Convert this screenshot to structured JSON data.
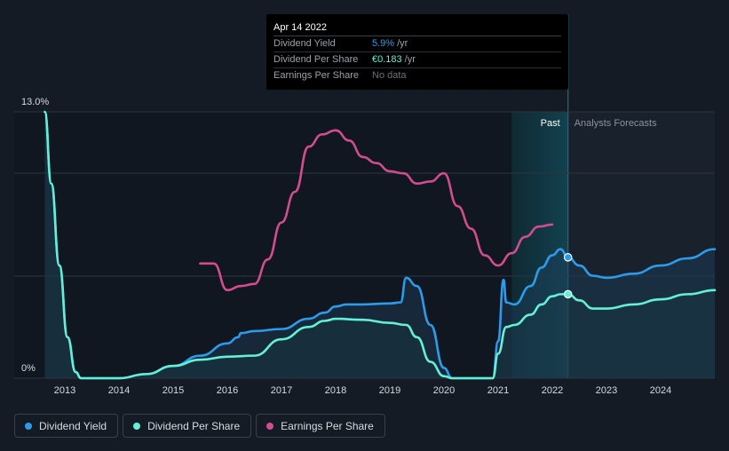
{
  "chart_data": {
    "type": "line",
    "y_axis_labels": {
      "top": "13.0%",
      "bottom": "0%"
    },
    "ylim": [
      0,
      13.0
    ],
    "xlim": [
      2012.5,
      2025.0
    ],
    "x_tick_labels": [
      "2013",
      "2014",
      "2015",
      "2016",
      "2017",
      "2018",
      "2019",
      "2020",
      "2021",
      "2022",
      "2023",
      "2024"
    ],
    "region_labels": {
      "past": "Past",
      "forecast": "Analysts Forecasts"
    },
    "past_region_start": 2021.25,
    "forecast_start": 2022.29,
    "series": [
      {
        "name": "Dividend Yield",
        "color": "#2e9bea",
        "points": [
          [
            2012.63,
            13.0
          ],
          [
            2012.75,
            9.5
          ],
          [
            2012.9,
            5.5
          ],
          [
            2013.05,
            2.0
          ],
          [
            2013.2,
            0.3
          ],
          [
            2013.3,
            0.0
          ],
          [
            2014.0,
            0.0
          ],
          [
            2014.5,
            0.2
          ],
          [
            2015.0,
            0.6
          ],
          [
            2015.5,
            1.1
          ],
          [
            2016.0,
            1.7
          ],
          [
            2016.2,
            2.0
          ],
          [
            2016.25,
            2.2
          ],
          [
            2016.5,
            2.3
          ],
          [
            2017.0,
            2.4
          ],
          [
            2017.5,
            2.9
          ],
          [
            2017.8,
            3.2
          ],
          [
            2018.0,
            3.5
          ],
          [
            2018.2,
            3.6
          ],
          [
            2018.5,
            3.6
          ],
          [
            2019.0,
            3.65
          ],
          [
            2019.2,
            3.7
          ],
          [
            2019.3,
            4.9
          ],
          [
            2019.5,
            4.5
          ],
          [
            2019.75,
            2.6
          ],
          [
            2020.0,
            0.5
          ],
          [
            2020.15,
            0.0
          ],
          [
            2020.9,
            0.0
          ],
          [
            2021.0,
            1.8
          ],
          [
            2021.1,
            4.8
          ],
          [
            2021.15,
            3.7
          ],
          [
            2021.3,
            3.6
          ],
          [
            2021.6,
            4.5
          ],
          [
            2021.8,
            5.4
          ],
          [
            2022.0,
            6.0
          ],
          [
            2022.15,
            6.3
          ],
          [
            2022.29,
            5.9
          ],
          [
            2022.5,
            5.5
          ],
          [
            2022.75,
            5.0
          ],
          [
            2023.0,
            4.9
          ],
          [
            2023.5,
            5.1
          ],
          [
            2024.0,
            5.5
          ],
          [
            2024.5,
            5.85
          ],
          [
            2025.0,
            6.3
          ]
        ]
      },
      {
        "name": "Dividend Per Share",
        "color": "#63f0d6",
        "points": [
          [
            2012.63,
            13.0
          ],
          [
            2012.75,
            9.5
          ],
          [
            2012.9,
            5.5
          ],
          [
            2013.05,
            2.0
          ],
          [
            2013.2,
            0.3
          ],
          [
            2013.3,
            0.0
          ],
          [
            2014.0,
            0.0
          ],
          [
            2014.5,
            0.2
          ],
          [
            2015.0,
            0.6
          ],
          [
            2015.5,
            0.9
          ],
          [
            2016.0,
            1.05
          ],
          [
            2016.5,
            1.1
          ],
          [
            2017.0,
            1.9
          ],
          [
            2017.5,
            2.5
          ],
          [
            2017.8,
            2.8
          ],
          [
            2018.0,
            2.9
          ],
          [
            2018.5,
            2.85
          ],
          [
            2019.0,
            2.7
          ],
          [
            2019.3,
            2.6
          ],
          [
            2019.5,
            2.0
          ],
          [
            2019.75,
            0.8
          ],
          [
            2020.0,
            0.1
          ],
          [
            2020.15,
            0.0
          ],
          [
            2020.9,
            0.0
          ],
          [
            2021.0,
            1.2
          ],
          [
            2021.15,
            2.5
          ],
          [
            2021.3,
            2.6
          ],
          [
            2021.6,
            3.1
          ],
          [
            2021.8,
            3.6
          ],
          [
            2022.0,
            4.0
          ],
          [
            2022.15,
            4.1
          ],
          [
            2022.29,
            4.1
          ],
          [
            2022.5,
            3.8
          ],
          [
            2022.75,
            3.4
          ],
          [
            2023.0,
            3.4
          ],
          [
            2023.5,
            3.6
          ],
          [
            2024.0,
            3.85
          ],
          [
            2024.5,
            4.1
          ],
          [
            2025.0,
            4.3
          ]
        ]
      },
      {
        "name": "Earnings Per Share",
        "color": "#d14d8f",
        "points": [
          [
            2015.5,
            5.6
          ],
          [
            2015.75,
            5.6
          ],
          [
            2016.0,
            4.3
          ],
          [
            2016.25,
            4.5
          ],
          [
            2016.5,
            4.6
          ],
          [
            2016.75,
            5.8
          ],
          [
            2017.0,
            7.6
          ],
          [
            2017.25,
            9.1
          ],
          [
            2017.5,
            11.3
          ],
          [
            2017.75,
            11.9
          ],
          [
            2018.0,
            12.1
          ],
          [
            2018.25,
            11.6
          ],
          [
            2018.5,
            10.8
          ],
          [
            2018.75,
            10.5
          ],
          [
            2019.0,
            10.1
          ],
          [
            2019.25,
            10.0
          ],
          [
            2019.5,
            9.5
          ],
          [
            2019.75,
            9.6
          ],
          [
            2020.0,
            10.0
          ],
          [
            2020.25,
            8.4
          ],
          [
            2020.5,
            7.3
          ],
          [
            2020.75,
            6.0
          ],
          [
            2021.0,
            5.5
          ],
          [
            2021.25,
            6.1
          ],
          [
            2021.5,
            6.9
          ],
          [
            2021.75,
            7.4
          ],
          [
            2022.0,
            7.5
          ]
        ]
      }
    ],
    "highlight_points": [
      {
        "series": "Dividend Yield",
        "x": 2022.29,
        "y": 5.9
      },
      {
        "series": "Dividend Per Share",
        "x": 2022.29,
        "y": 4.1
      }
    ]
  },
  "tooltip": {
    "date": "Apr 14 2022",
    "rows": [
      {
        "label": "Dividend Yield",
        "value": "5.9%",
        "unit": "/yr"
      },
      {
        "label": "Dividend Per Share",
        "value": "€0.183",
        "unit": "/yr"
      },
      {
        "label": "Earnings Per Share",
        "value": "No data",
        "unit": ""
      }
    ]
  },
  "legend": [
    {
      "label": "Dividend Yield",
      "color": "#2e9bea"
    },
    {
      "label": "Dividend Per Share",
      "color": "#63f0d6"
    },
    {
      "label": "Earnings Per Share",
      "color": "#d14d8f"
    }
  ]
}
